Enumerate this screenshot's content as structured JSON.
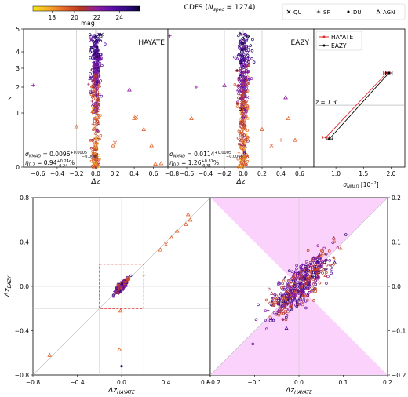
{
  "title": "CDFS (N$_{spec}$ = 1274)",
  "title_main": "CDFS (",
  "title_n": "N",
  "title_sub": "spec",
  "title_tail": " = 1274)",
  "colorbar": {
    "label": "mag",
    "ticks": [
      "18",
      "20",
      "22",
      "24"
    ],
    "tick_values": [
      18,
      20,
      22,
      24
    ],
    "range": [
      16.3,
      25.8
    ],
    "colormap": [
      "#f5e61a",
      "#f6a928",
      "#e3632a",
      "#b7371f",
      "#8c1ea0",
      "#5a0fa8",
      "#2a0a7a",
      "#0b0033"
    ]
  },
  "legend_top": {
    "items": [
      {
        "label": "QU",
        "marker": "x"
      },
      {
        "label": "SF",
        "marker": "plus"
      },
      {
        "label": "DU",
        "marker": "star"
      },
      {
        "label": "AGN",
        "marker": "triangle"
      }
    ]
  },
  "panels": {
    "hayate_label": "HAYATE",
    "eazy_label": "EAZY",
    "xlabel_dz": "Δz",
    "ylabel_z": "z",
    "hayate_sigma": "σ",
    "hayate_sigma_sub": "NMAD",
    "hayate_sigma_val": " = 0.0096",
    "hayate_sigma_up": "+0.0005",
    "hayate_sigma_lo": "−0.0005",
    "hayate_eta": "η",
    "hayate_eta_sub": "0.2",
    "hayate_eta_val": " = 0.94",
    "hayate_eta_up": "+0.24",
    "hayate_eta_lo": "−0.24",
    "hayate_eta_unit": "%",
    "eazy_sigma": "σ",
    "eazy_sigma_sub": "NMAD",
    "eazy_sigma_val": " = 0.0114",
    "eazy_sigma_up": "+0.0005",
    "eazy_sigma_lo": "−0.0006",
    "eazy_eta": "η",
    "eazy_eta_sub": "0.2",
    "eazy_eta_val": " = 1.26",
    "eazy_eta_up": "+0.31",
    "eazy_eta_lo": "−0.31",
    "eazy_eta_unit": "%",
    "xticks_dz": [
      "−0.6",
      "−0.4",
      "−0.2",
      "0.0",
      "0.2",
      "0.4",
      "0.6"
    ],
    "xticks_dz_eazy": [
      "−0.8",
      "−0.6",
      "−0.4",
      "−0.2",
      "0.0",
      "0.2",
      "0.4",
      "0.6"
    ],
    "yticks_z": [
      "0",
      "1",
      "2",
      "3",
      "4",
      "5"
    ],
    "sigma_panel": {
      "legend": [
        "HAYATE",
        "EAZY"
      ],
      "hayate_color": "#e0282e",
      "eazy_color": "#000000",
      "z_label": "z = 1.3",
      "xticks": [
        "1.0",
        "1.5",
        "2.0"
      ],
      "xlabel": "σ",
      "xlabel_sub": "NMAD",
      "xlabel_unit": " [10",
      "xlabel_exp": "−2",
      "xlabel_close": "]"
    }
  },
  "bottom": {
    "ylabel": "Δz",
    "ylabel_sub": "EAZY",
    "xlabel": "Δz",
    "xlabel_sub": "HAYATE",
    "left_xticks": [
      "−0.8",
      "−0.4",
      "0.0",
      "0.4",
      "0.8"
    ],
    "left_yticks": [
      "0.8",
      "0.4",
      "0.0",
      "−0.4",
      "−0.8"
    ],
    "right_xticks": [
      "−0.2",
      "−0.1",
      "0.0",
      "0.1",
      "0.2"
    ],
    "right_yticks": [
      "0.2",
      "0.1",
      "0.0",
      "−0.1",
      "−0.2"
    ],
    "shade_color": "#fbd2fb"
  },
  "chart_data": [
    {
      "type": "scatter",
      "title": "HAYATE",
      "xlabel": "Δz",
      "ylabel": "z",
      "xlim": [
        -0.75,
        0.75
      ],
      "ylim": [
        0,
        5
      ],
      "yscale": "sqrt-like",
      "sigma_nmad": 0.0096,
      "eta_0.2_percent": 0.94,
      "outlier_points": [
        {
          "x": -0.65,
          "y": 2.1,
          "marker": "plus"
        },
        {
          "x": -0.2,
          "y": 0.75,
          "marker": "triangle"
        },
        {
          "x": 0.18,
          "y": 0.4,
          "marker": "triangle"
        },
        {
          "x": 0.2,
          "y": 0.45,
          "marker": "x"
        },
        {
          "x": 0.35,
          "y": 1.9,
          "marker": "triangle"
        },
        {
          "x": 0.4,
          "y": 0.9,
          "marker": "triangle"
        },
        {
          "x": 0.42,
          "y": 0.92,
          "marker": "x"
        },
        {
          "x": 0.5,
          "y": 0.7,
          "marker": "triangle"
        },
        {
          "x": 0.58,
          "y": 0.4,
          "marker": "triangle"
        },
        {
          "x": 0.62,
          "y": 0.06,
          "marker": "triangle"
        },
        {
          "x": 0.68,
          "y": 0.07,
          "marker": "triangle"
        }
      ]
    },
    {
      "type": "scatter",
      "title": "EAZY",
      "xlabel": "Δz",
      "xlim": [
        -0.8,
        0.75
      ],
      "ylim": [
        0,
        5
      ],
      "sigma_nmad": 0.0114,
      "eta_0.2_percent": 1.26,
      "outlier_points": [
        {
          "x": -0.78,
          "y": 4.7,
          "marker": "plus"
        },
        {
          "x": -0.5,
          "y": 2.0,
          "marker": "plus"
        },
        {
          "x": -0.55,
          "y": 0.9,
          "marker": "triangle"
        },
        {
          "x": -0.2,
          "y": 2.1,
          "marker": "triangle"
        },
        {
          "x": 0.2,
          "y": 0.7,
          "marker": "triangle"
        },
        {
          "x": 0.3,
          "y": 0.4,
          "marker": "x"
        },
        {
          "x": 0.4,
          "y": 0.5,
          "marker": "plus"
        },
        {
          "x": 0.45,
          "y": 1.6,
          "marker": "triangle"
        },
        {
          "x": 0.48,
          "y": 0.9,
          "marker": "triangle"
        },
        {
          "x": 0.55,
          "y": 0.5,
          "marker": "triangle"
        }
      ]
    },
    {
      "type": "line",
      "xlabel": "σNMAD [10−2]",
      "xlim": [
        0.6,
        2.25
      ],
      "ylim": [
        0,
        5
      ],
      "series": [
        {
          "name": "HAYATE",
          "x": [
            0.82,
            1.92
          ],
          "y": [
            0.55,
            2.75
          ],
          "xerr": 0.06
        },
        {
          "name": "EAZY",
          "x": [
            0.88,
            1.96
          ],
          "y": [
            0.52,
            2.75
          ],
          "xerr": 0.06
        }
      ],
      "hline_z": 1.3
    },
    {
      "type": "scatter",
      "xlabel": "ΔzHAYATE",
      "ylabel": "ΔzEAZY",
      "xlim": [
        -0.8,
        0.8
      ],
      "ylim": [
        -0.8,
        0.8
      ],
      "box": [
        -0.2,
        0.2
      ],
      "outlier_points": [
        {
          "x": -0.65,
          "y": -0.62,
          "marker": "triangle"
        },
        {
          "x": -0.02,
          "y": -0.57,
          "marker": "triangle"
        },
        {
          "x": 0.0,
          "y": -0.72,
          "marker": "dot"
        },
        {
          "x": -0.01,
          "y": -0.22,
          "marker": "triangle"
        },
        {
          "x": 0.35,
          "y": 0.33,
          "marker": "triangle"
        },
        {
          "x": 0.4,
          "y": 0.38,
          "marker": "x"
        },
        {
          "x": 0.45,
          "y": 0.44,
          "marker": "triangle"
        },
        {
          "x": 0.5,
          "y": 0.5,
          "marker": "triangle"
        },
        {
          "x": 0.58,
          "y": 0.56,
          "marker": "triangle"
        },
        {
          "x": 0.6,
          "y": 0.65,
          "marker": "triangle"
        },
        {
          "x": 0.62,
          "y": 0.6,
          "marker": "triangle"
        },
        {
          "x": 0.2,
          "y": 0.1,
          "marker": "plus"
        }
      ]
    },
    {
      "type": "scatter",
      "xlabel": "ΔzHAYATE",
      "xlim": [
        -0.2,
        0.2
      ],
      "ylim": [
        -0.2,
        0.2
      ],
      "note": "zoom of central box; shaded wedge where |ΔzEAZY| > |ΔzHAYATE|"
    }
  ]
}
